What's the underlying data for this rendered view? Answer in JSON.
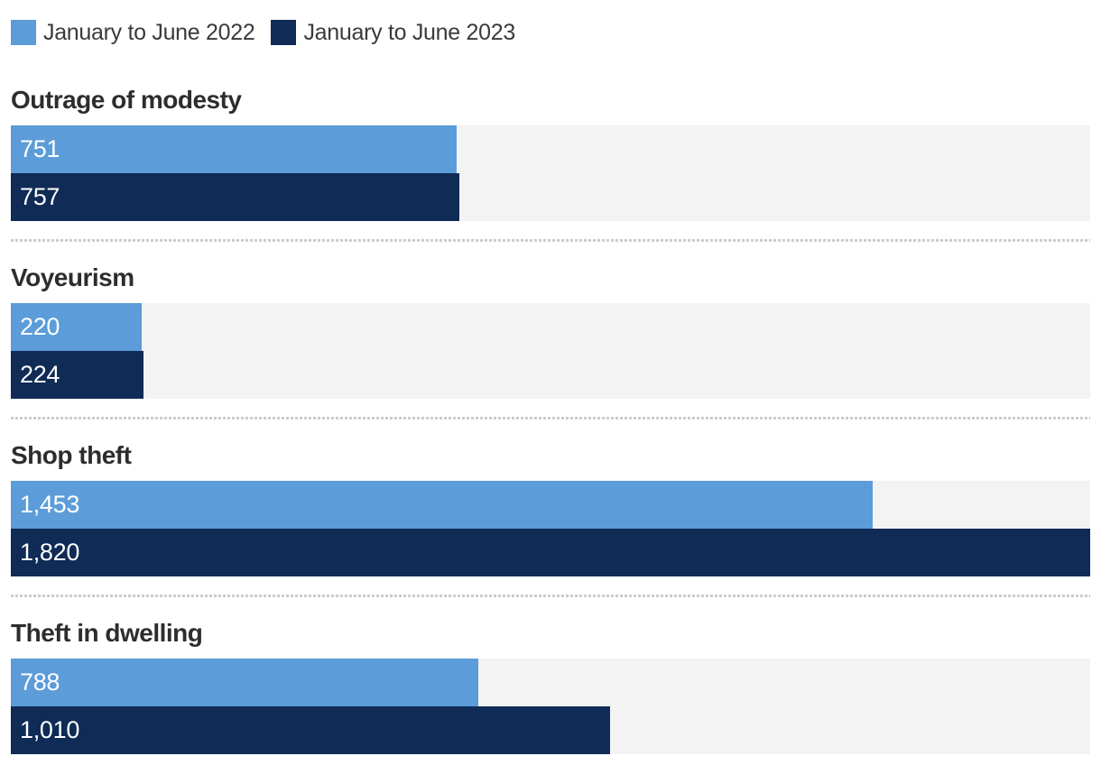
{
  "legend": {
    "items": [
      {
        "label": "January to June 2022",
        "color": "#5b9cd9"
      },
      {
        "label": "January to June 2023",
        "color": "#0f2b56"
      }
    ]
  },
  "colors": {
    "series_2022": "#5b9cd9",
    "series_2023": "#0f2b56",
    "bar_track_background": "#f3f3f4",
    "divider": "#cccccc",
    "category_title_text": "#2d2d2d",
    "legend_text": "#3a3a3a",
    "bar_label_text": "#ffffff",
    "page_background": "#ffffff"
  },
  "chart_data": {
    "type": "bar",
    "orientation": "horizontal",
    "title": "",
    "xlabel": "",
    "ylabel": "",
    "legend_position": "top-left",
    "grid": false,
    "max_value": 1820,
    "value_range": [
      0,
      1820
    ],
    "series_names": [
      "January to June 2022",
      "January to June 2023"
    ],
    "categories": [
      "Outrage of modesty",
      "Voyeurism",
      "Shop theft",
      "Theft in dwelling"
    ],
    "series": [
      {
        "name": "January to June 2022",
        "values": [
          751,
          220,
          1453,
          788
        ]
      },
      {
        "name": "January to June 2023",
        "values": [
          757,
          224,
          1820,
          1010
        ]
      }
    ],
    "groups": [
      {
        "label": "Outrage of modesty",
        "values": [
          751,
          757
        ],
        "display": [
          "751",
          "757"
        ]
      },
      {
        "label": "Voyeurism",
        "values": [
          220,
          224
        ],
        "display": [
          "220",
          "224"
        ]
      },
      {
        "label": "Shop theft",
        "values": [
          1453,
          1820
        ],
        "display": [
          "1,453",
          "1,820"
        ]
      },
      {
        "label": "Theft in dwelling",
        "values": [
          788,
          1010
        ],
        "display": [
          "788",
          "1,010"
        ]
      }
    ]
  }
}
